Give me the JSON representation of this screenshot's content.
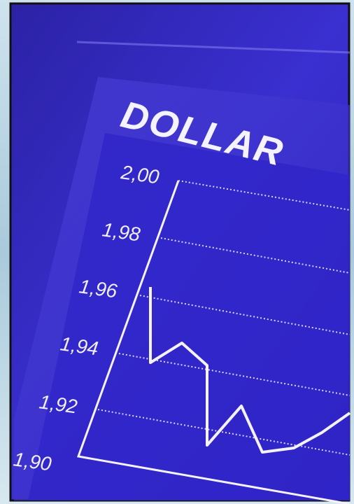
{
  "title": "DOLLAR",
  "axis_labels": [
    "2,00",
    "1,98",
    "1,96",
    "1,94",
    "1,92",
    "1,90"
  ]
}
